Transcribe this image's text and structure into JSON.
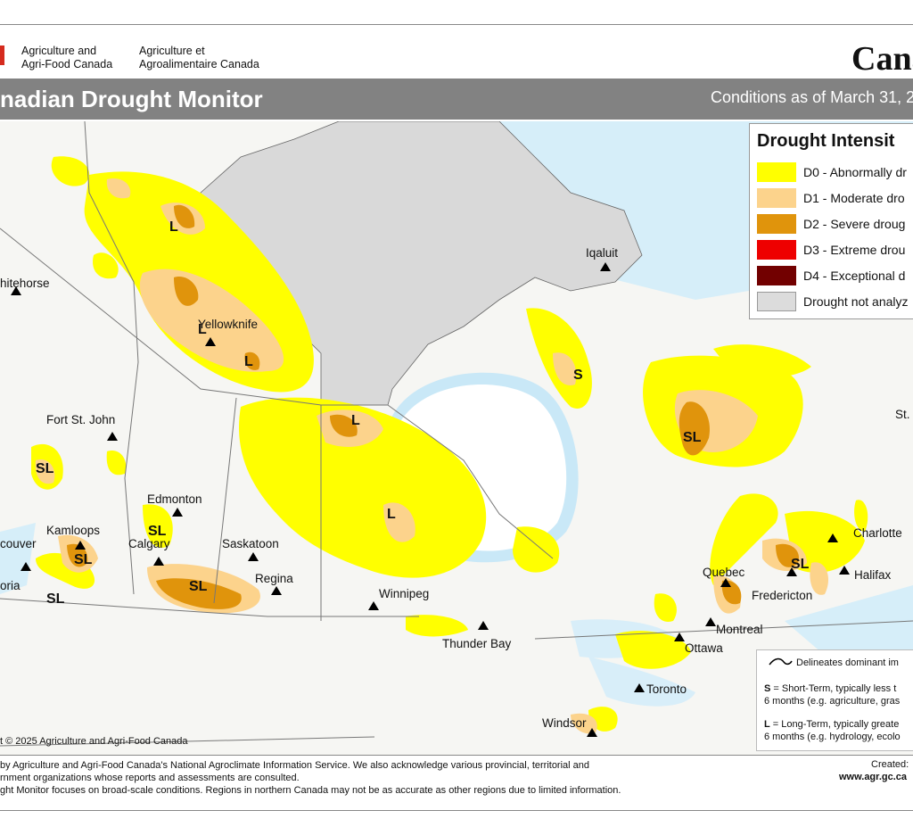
{
  "header": {
    "org_en_1": "Agriculture and",
    "org_en_2": "Agri-Food Canada",
    "org_fr_1": "Agriculture et",
    "org_fr_2": "Agroalimentaire Canada",
    "wordmark": "Cana",
    "title": "nadian Drought Monitor",
    "subtitle": "Conditions as of March 31, 2"
  },
  "legend": {
    "title": "Drought Intensit",
    "items": [
      {
        "label": "D0 - Abnormally dr",
        "color": "#ffff00"
      },
      {
        "label": "D1 - Moderate dro",
        "color": "#fcd38c"
      },
      {
        "label": "D2 - Severe droug",
        "color": "#e0940c"
      },
      {
        "label": "D3 - Extreme drou",
        "color": "#ee0000"
      },
      {
        "label": "D4 - Exceptional d",
        "color": "#720000"
      },
      {
        "label": "Drought not analyz",
        "color": "#dcdcdc"
      }
    ]
  },
  "map": {
    "cities": [
      "Iqaluit",
      "hitehorse",
      "Yellowknife",
      "Fort St. John",
      "Edmonton",
      "Kamloops",
      "Calgary",
      "Saskatoon",
      "couver",
      "Regina",
      "oria",
      "Winnipeg",
      "Thunder Bay",
      "Quebec",
      "Fredericton",
      "Halifax",
      "Charlotte",
      "St.",
      "Montreal",
      "Ottawa",
      "Toronto",
      "Windsor"
    ],
    "impact_codes": [
      "L",
      "L",
      "L",
      "L",
      "L",
      "S",
      "SL",
      "SL",
      "SL",
      "SL",
      "SL",
      "SL"
    ]
  },
  "notes": {
    "line_desc": "Delineates dominant im",
    "s_label": "S",
    "s_text1": " = Short-Term, typically less t",
    "s_text2": "6 months (e.g. agriculture, gras",
    "l_label": "L",
    "l_text1": " = Long-Term, typically greate",
    "l_text2": "6 months (e.g. hydrology, ecolo"
  },
  "copyright": "t © 2025 Agriculture and Agri-Food Canada",
  "footer": {
    "line1": " by Agriculture and Agri-Food Canada's National Agroclimate Information Service.  We also acknowledge various provincial, territorial and",
    "line2": "rnment organizations whose reports and assessments are consulted.",
    "line3": "ght Monitor focuses on broad-scale conditions.  Regions in northern Canada may not be as accurate as other regions due to limited information.",
    "created": "Created:",
    "website": "www.agr.gc.ca"
  }
}
